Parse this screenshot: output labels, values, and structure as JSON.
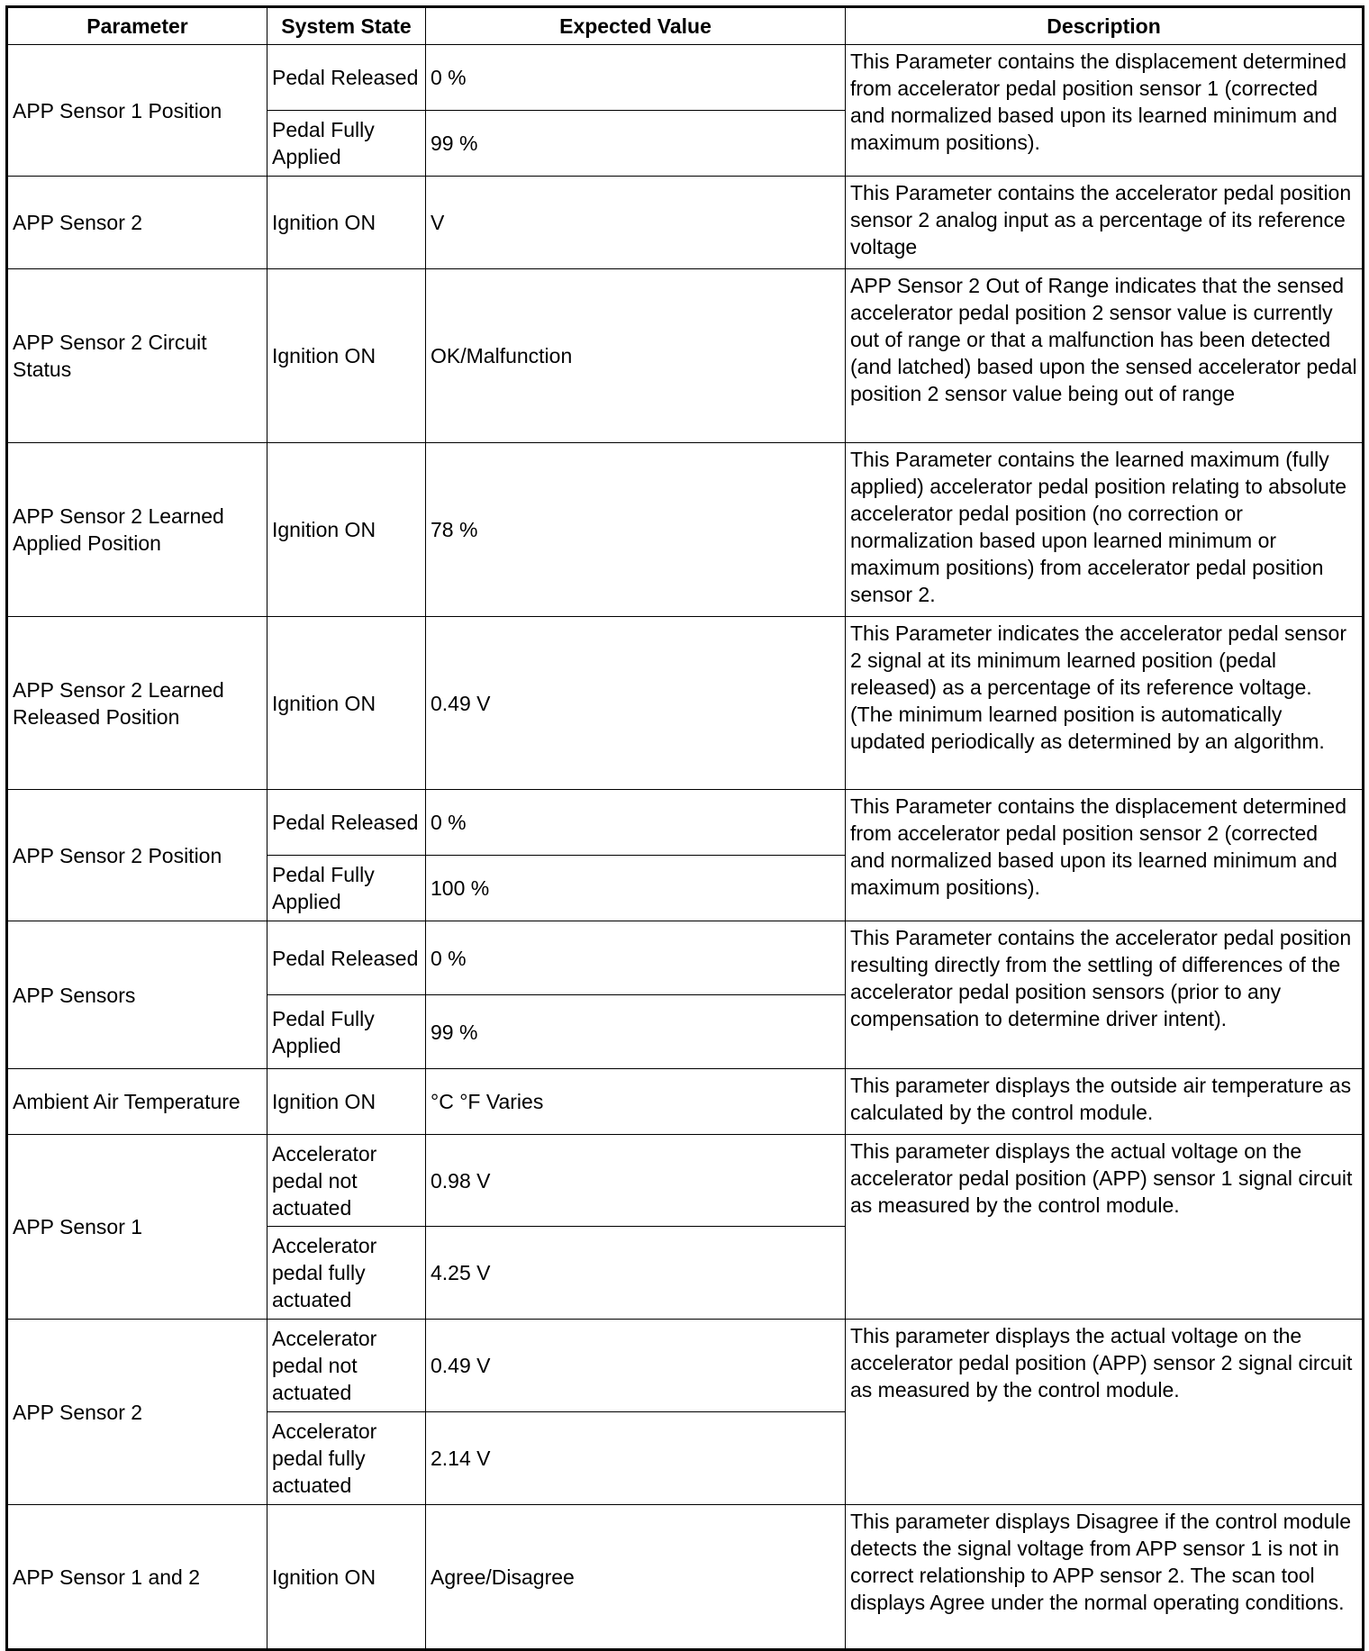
{
  "headers": [
    "Parameter",
    "System State",
    "Expected Value",
    "Description"
  ],
  "rows": [
    {
      "parameter": "APP Sensor 1 Position",
      "states": [
        {
          "state": "Pedal Released",
          "value": "0 %"
        },
        {
          "state": "Pedal Fully Applied",
          "value": "99 %"
        }
      ],
      "description": "This Parameter contains the displacement determined from accelerator pedal position sensor 1 (corrected and normalized based upon its learned minimum and maximum positions)."
    },
    {
      "parameter": "APP Sensor 2",
      "states": [
        {
          "state": "Ignition ON",
          "value": "V"
        }
      ],
      "description": "This Parameter contains the accelerator pedal position sensor 2 analog input as a percentage of its reference voltage"
    },
    {
      "parameter": "APP Sensor 2 Circuit Status",
      "states": [
        {
          "state": "Ignition ON",
          "value": "OK/Malfunction"
        }
      ],
      "description": "APP Sensor 2 Out of Range indicates that the sensed accelerator pedal position 2 sensor value is currently out of range or that a malfunction has been detected (and latched) based upon the sensed accelerator pedal position 2 sensor value being out of range"
    },
    {
      "parameter": "APP Sensor 2 Learned Applied Position",
      "states": [
        {
          "state": "Ignition ON",
          "value": "78 %"
        }
      ],
      "description": "This Parameter contains the learned maximum (fully applied) accelerator pedal position relating to absolute accelerator pedal position (no correction or normalization based upon learned minimum or maximum positions) from accelerator pedal position sensor 2."
    },
    {
      "parameter": "APP Sensor 2 Learned Released Position",
      "states": [
        {
          "state": "Ignition ON",
          "value": "0.49 V"
        }
      ],
      "description": "This Parameter indicates the accelerator pedal sensor 2 signal at its minimum learned position (pedal released) as a percentage of its reference voltage. (The minimum learned position is automatically updated periodically as determined by an algorithm."
    },
    {
      "parameter": "APP Sensor 2 Position",
      "states": [
        {
          "state": "Pedal Released",
          "value": "0 %"
        },
        {
          "state": "Pedal Fully Applied",
          "value": "100 %"
        }
      ],
      "description": "This Parameter contains the displacement determined from accelerator pedal position sensor 2 (corrected and normalized based upon its learned minimum and maximum positions)."
    },
    {
      "parameter": "APP Sensors",
      "states": [
        {
          "state": "Pedal Released",
          "value": "0 %"
        },
        {
          "state": "Pedal Fully Applied",
          "value": "99 %"
        }
      ],
      "description": "This Parameter contains the accelerator pedal position resulting directly from the settling of differences of the accelerator pedal position sensors (prior to any compensation to determine driver intent)."
    },
    {
      "parameter": "Ambient Air Temperature",
      "states": [
        {
          "state": "Ignition ON",
          "value": "°C °F Varies"
        }
      ],
      "description": "This parameter displays the outside air temperature as calculated by the control module."
    },
    {
      "parameter": "APP Sensor 1",
      "states": [
        {
          "state": "Accelerator pedal not actuated",
          "value": "0.98 V"
        },
        {
          "state": "Accelerator pedal fully actuated",
          "value": "4.25 V"
        }
      ],
      "description": "This parameter displays the actual voltage on the accelerator pedal position (APP) sensor 1 signal circuit as measured by the control module."
    },
    {
      "parameter": "APP Sensor 2",
      "states": [
        {
          "state": "Accelerator pedal not actuated",
          "value": "0.49 V"
        },
        {
          "state": "Accelerator pedal fully actuated",
          "value": "2.14 V"
        }
      ],
      "description": "This parameter displays the actual voltage on the accelerator pedal position (APP) sensor 2 signal circuit as measured by the control module."
    },
    {
      "parameter": "APP Sensor 1 and 2",
      "states": [
        {
          "state": "Ignition ON",
          "value": "Agree/Disagree"
        }
      ],
      "description": "This parameter displays Disagree if the control module detects the signal voltage from APP sensor 1 is not in correct relationship to APP sensor 2. The scan tool displays Agree under the normal operating conditions."
    }
  ]
}
